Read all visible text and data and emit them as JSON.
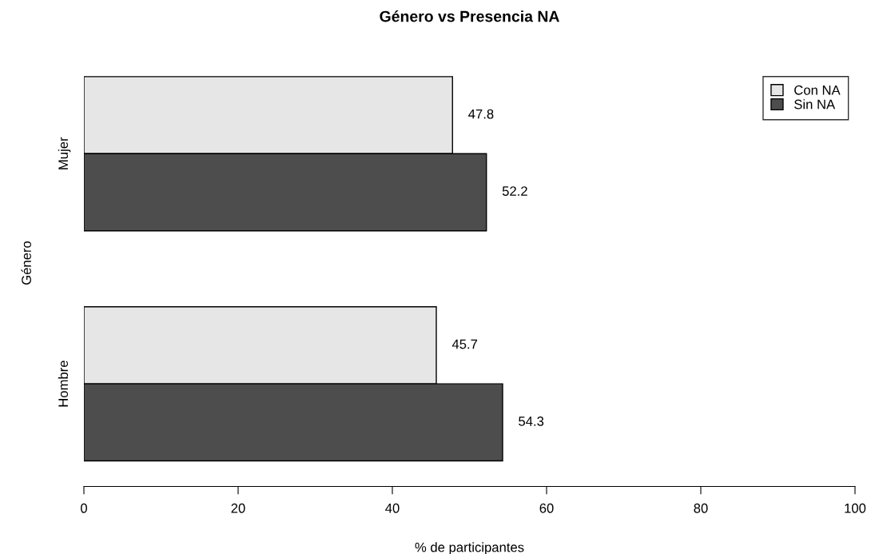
{
  "chart_data": {
    "type": "bar",
    "orientation": "horizontal",
    "title": "Género vs Presencia NA",
    "xlabel": "% de participantes",
    "ylabel": "Género",
    "categories": [
      "Mujer",
      "Hombre"
    ],
    "series": [
      {
        "name": "Con NA",
        "color": "#e6e6e6",
        "values": [
          47.8,
          45.7
        ]
      },
      {
        "name": "Sin NA",
        "color": "#4d4d4d",
        "values": [
          52.2,
          54.3
        ]
      }
    ],
    "xlim": [
      0,
      100
    ],
    "xticks": [
      0,
      20,
      40,
      60,
      80,
      100
    ],
    "data_labels": true,
    "legend": "top right",
    "grid": false
  }
}
